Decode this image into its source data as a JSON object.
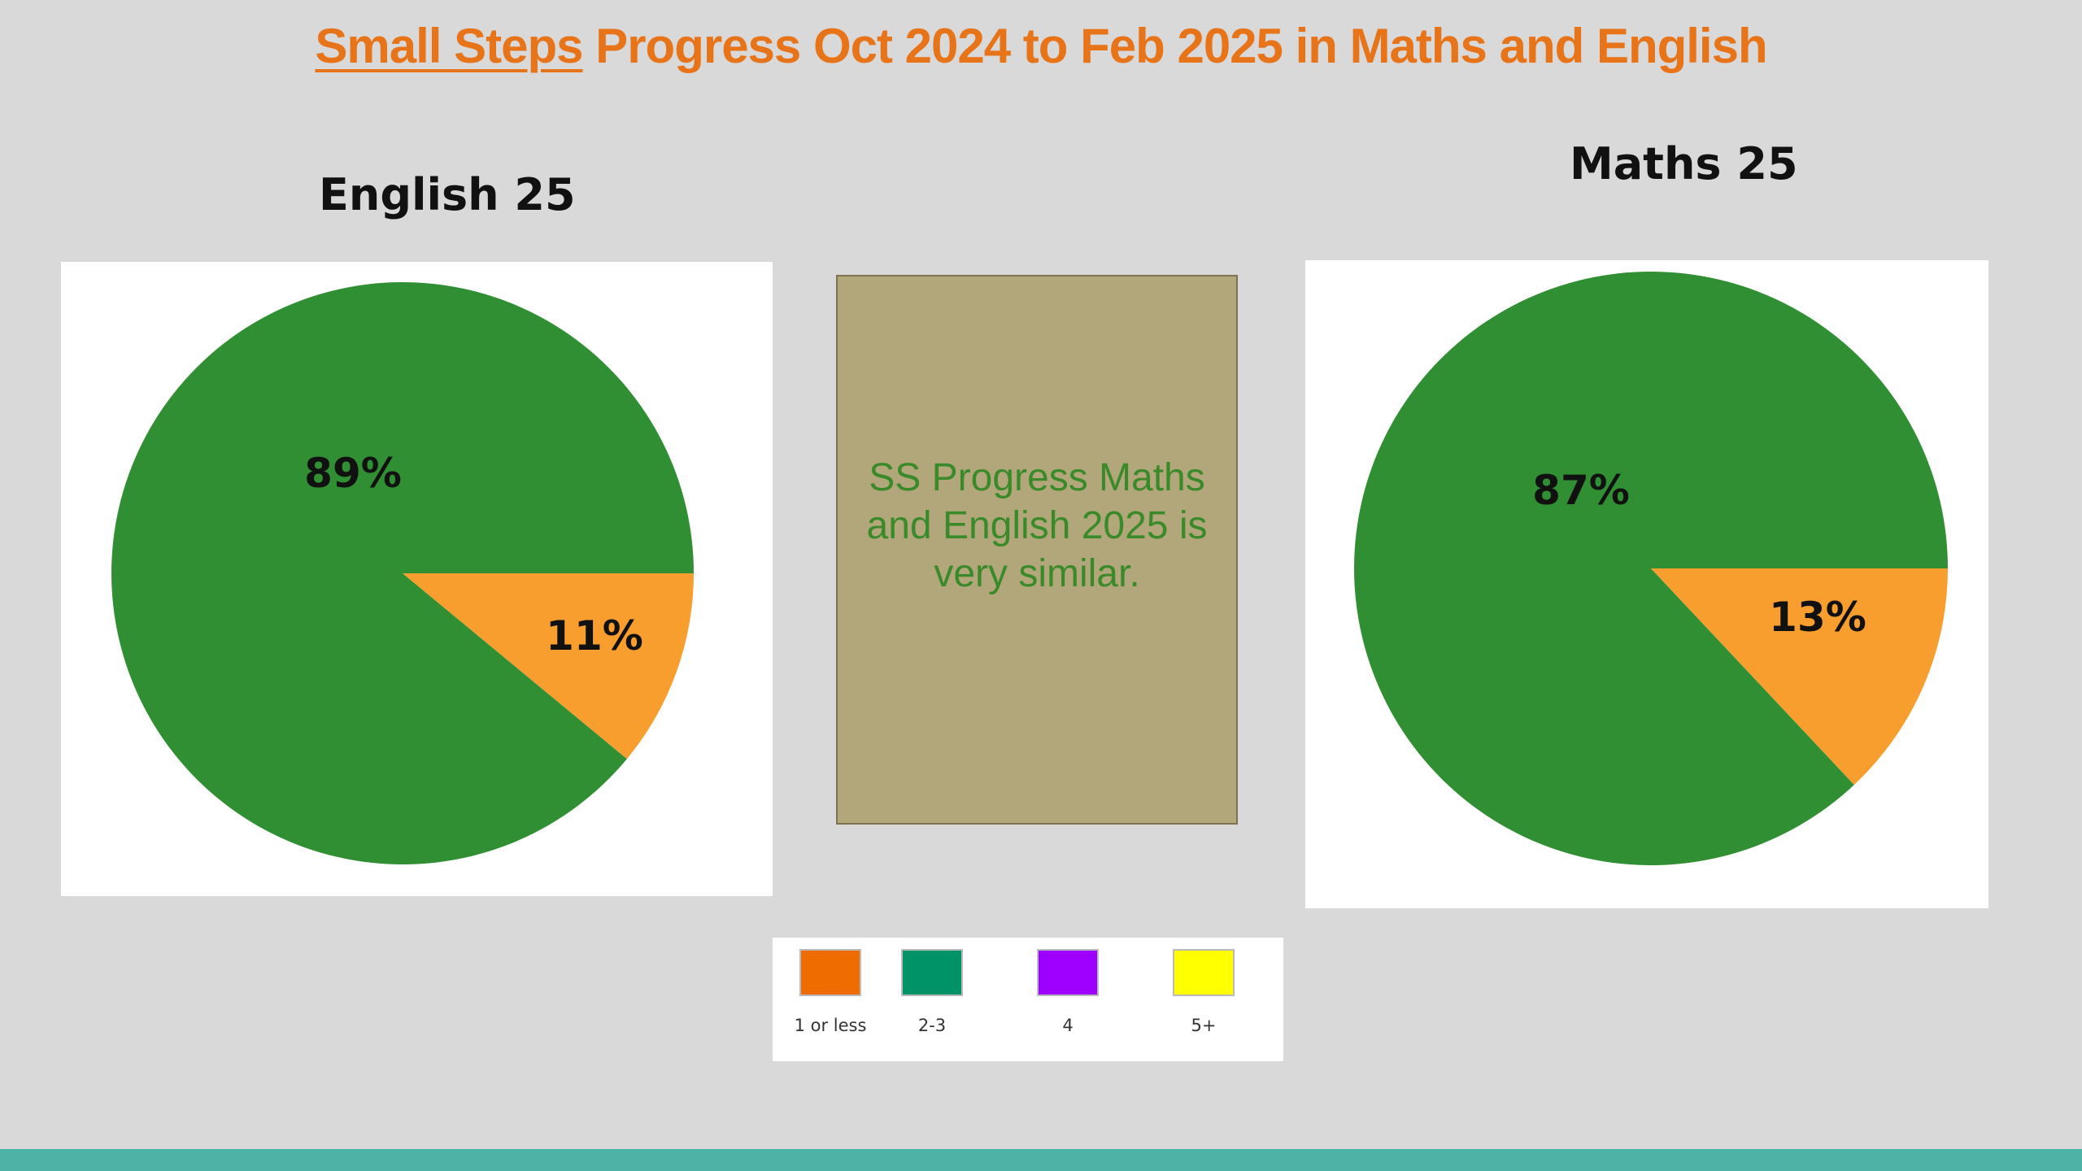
{
  "title": {
    "underlined": "Small Steps",
    "rest": " Progress Oct 2024 to Feb 2025 in Maths and English"
  },
  "colors": {
    "title": "#e8741a",
    "green_slice": "#318f33",
    "orange_slice": "#f89e2e",
    "note_bg": "#b2a77a",
    "note_text": "#3a8a2a",
    "footer": "#4db3a6"
  },
  "note": "SS Progress Maths and English 2025 is very similar.",
  "legend": [
    {
      "label": "1 or less",
      "color": "#ef6c00"
    },
    {
      "label": "2-3",
      "color": "#009368"
    },
    {
      "label": "4",
      "color": "#9d00ff"
    },
    {
      "label": "5+",
      "color": "#ffff00"
    }
  ],
  "chart_data": [
    {
      "type": "pie",
      "title": "English 25",
      "slices": [
        {
          "label": "89%",
          "value": 89,
          "color": "#318f33"
        },
        {
          "label": "11%",
          "value": 11,
          "color": "#f89e2e"
        }
      ]
    },
    {
      "type": "pie",
      "title": "Maths 25",
      "slices": [
        {
          "label": "87%",
          "value": 87,
          "color": "#318f33"
        },
        {
          "label": "13%",
          "value": 13,
          "color": "#f89e2e"
        }
      ]
    }
  ]
}
